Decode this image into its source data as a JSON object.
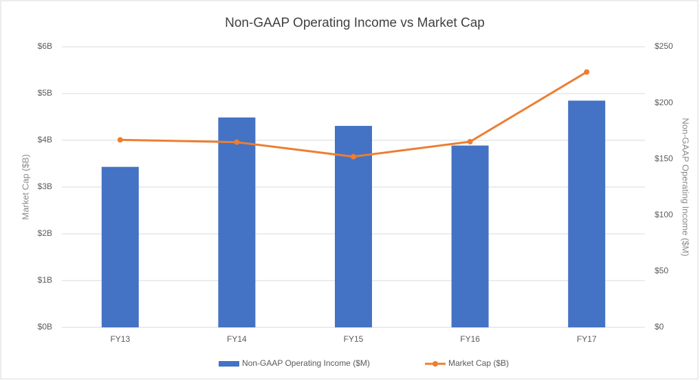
{
  "chart_data": {
    "type": "bar_line",
    "title": "Non-GAAP Operating Income vs Market Cap",
    "categories": [
      "FY13",
      "FY14",
      "FY15",
      "FY16",
      "FY17"
    ],
    "ylabel": "Market Cap ($B)",
    "y2label": "Non-GAAP Operating Income ($M)",
    "ylim": [
      0,
      6
    ],
    "yticks": [
      {
        "value": 0,
        "label": "$0B"
      },
      {
        "value": 1,
        "label": "$1B"
      },
      {
        "value": 2,
        "label": "$2B"
      },
      {
        "value": 3,
        "label": "$3B"
      },
      {
        "value": 4,
        "label": "$4B"
      },
      {
        "value": 5,
        "label": "$5B"
      },
      {
        "value": 6,
        "label": "$6B"
      }
    ],
    "y2lim": [
      0,
      250
    ],
    "y2ticks": [
      {
        "value": 0,
        "label": "$0"
      },
      {
        "value": 50,
        "label": "$50"
      },
      {
        "value": 100,
        "label": "$100"
      },
      {
        "value": 150,
        "label": "$150"
      },
      {
        "value": 200,
        "label": "$200"
      },
      {
        "value": 250,
        "label": "$250"
      }
    ],
    "grid": true,
    "legend": "bottom",
    "series": [
      {
        "name": "Non-GAAP Operating Income ($M)",
        "kind": "bar",
        "axis": "y2",
        "color": "#4472c4",
        "values": [
          143,
          187,
          179.5,
          162,
          202
        ]
      },
      {
        "name": "Market Cap ($B)",
        "kind": "line",
        "axis": "y",
        "color": "#ed7d31",
        "values": [
          4.01,
          3.96,
          3.65,
          3.97,
          5.46
        ]
      }
    ]
  }
}
